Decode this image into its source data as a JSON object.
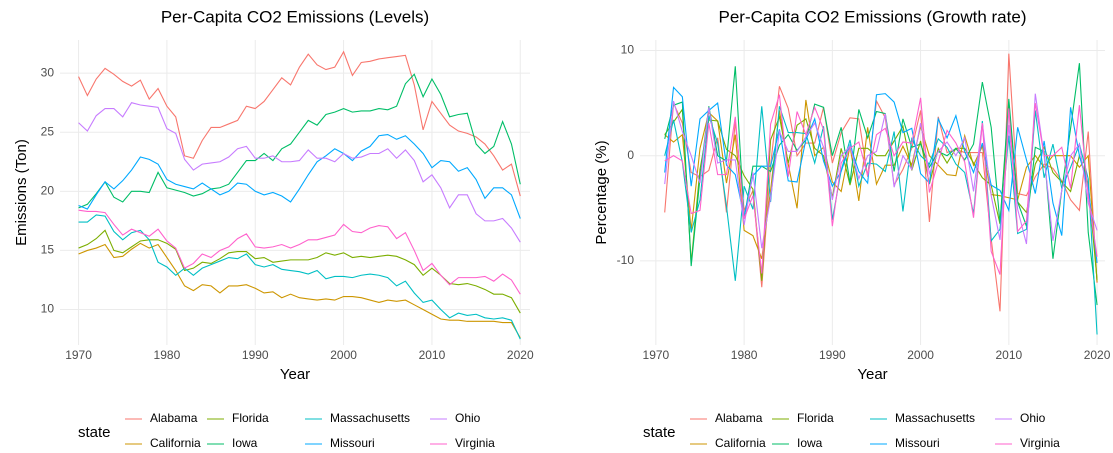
{
  "chart_data": [
    {
      "type": "line",
      "title": "Per-Capita CO2 Emissions (Levels)",
      "x_label": "Year",
      "y_label": "Emissions (Ton)",
      "x": [
        1970,
        1971,
        1972,
        1973,
        1974,
        1975,
        1976,
        1977,
        1978,
        1979,
        1980,
        1981,
        1982,
        1983,
        1984,
        1985,
        1986,
        1987,
        1988,
        1989,
        1990,
        1991,
        1992,
        1993,
        1994,
        1995,
        1996,
        1997,
        1998,
        1999,
        2000,
        2001,
        2002,
        2003,
        2004,
        2005,
        2006,
        2007,
        2008,
        2009,
        2010,
        2011,
        2012,
        2013,
        2014,
        2015,
        2016,
        2017,
        2018,
        2019,
        2020
      ],
      "xlim": [
        1967.9,
        2021.1
      ],
      "ylim": [
        7.0,
        32.8
      ],
      "xticks": [
        1970,
        1980,
        1990,
        2000,
        2010,
        2020
      ],
      "yticks": [
        10,
        15,
        20,
        25,
        30
      ],
      "grid": true,
      "legend_title": "state",
      "legend_position": "bottom",
      "series": [
        {
          "name": "Alabama",
          "color": "#F8766D",
          "values": [
            29.7,
            28.1,
            29.5,
            30.4,
            29.9,
            29.3,
            28.9,
            29.4,
            27.8,
            28.7,
            27.2,
            26.3,
            23.0,
            22.8,
            24.3,
            25.4,
            25.4,
            25.7,
            26.0,
            27.2,
            27.0,
            27.6,
            28.6,
            29.6,
            29.0,
            30.5,
            31.6,
            30.7,
            30.3,
            30.5,
            31.8,
            29.8,
            30.9,
            31.0,
            31.2,
            31.3,
            31.4,
            31.5,
            29.0,
            25.2,
            27.6,
            26.6,
            25.6,
            25.1,
            24.9,
            24.6,
            24.0,
            23.0,
            21.8,
            22.3,
            19.6
          ]
        },
        {
          "name": "California",
          "color": "#CD9600",
          "values": [
            14.7,
            15.0,
            15.2,
            15.5,
            14.4,
            14.5,
            15.1,
            15.6,
            15.2,
            15.5,
            14.4,
            13.3,
            12.0,
            11.6,
            12.1,
            12.0,
            11.4,
            12.0,
            12.0,
            12.1,
            11.8,
            11.4,
            11.5,
            11.0,
            11.3,
            11.0,
            10.9,
            10.8,
            10.9,
            10.8,
            11.1,
            11.1,
            11.0,
            10.8,
            10.6,
            10.8,
            10.7,
            10.8,
            10.4,
            10.0,
            9.6,
            9.2,
            9.1,
            9.1,
            9.0,
            9.0,
            9.0,
            9.0,
            8.9,
            8.9,
            7.6
          ]
        },
        {
          "name": "Florida",
          "color": "#7CAE00",
          "values": [
            15.2,
            15.5,
            16.0,
            16.7,
            15.0,
            14.8,
            15.3,
            15.8,
            15.9,
            15.9,
            15.6,
            15.1,
            13.3,
            13.5,
            14.0,
            13.9,
            14.3,
            14.8,
            14.9,
            14.9,
            14.3,
            14.4,
            14.0,
            14.1,
            14.2,
            14.2,
            14.2,
            14.4,
            14.8,
            14.6,
            14.8,
            14.4,
            14.5,
            14.4,
            14.5,
            14.6,
            14.5,
            14.2,
            13.8,
            12.9,
            13.5,
            12.9,
            12.2,
            12.1,
            12.2,
            12.0,
            11.7,
            11.3,
            11.3,
            11.0,
            9.7
          ]
        },
        {
          "name": "Iowa",
          "color": "#00BE67",
          "values": [
            18.6,
            18.9,
            19.8,
            20.8,
            19.5,
            19.1,
            20.0,
            20.0,
            19.9,
            21.6,
            20.3,
            20.1,
            19.9,
            19.6,
            19.8,
            20.2,
            20.3,
            20.6,
            21.6,
            22.6,
            22.6,
            23.2,
            22.6,
            23.6,
            24.0,
            25.0,
            26.0,
            25.6,
            26.5,
            26.7,
            27.0,
            26.7,
            26.8,
            26.8,
            27.0,
            26.9,
            27.2,
            29.1,
            29.9,
            28.0,
            29.5,
            28.2,
            26.3,
            26.5,
            26.6,
            24.0,
            23.2,
            23.8,
            25.9,
            24.0,
            20.6
          ]
        },
        {
          "name": "Massachusetts",
          "color": "#00BFC4",
          "values": [
            17.4,
            17.4,
            18.0,
            17.9,
            16.6,
            15.9,
            16.5,
            16.7,
            15.9,
            14.0,
            13.6,
            12.9,
            13.5,
            12.9,
            13.5,
            13.8,
            14.1,
            14.4,
            14.3,
            14.7,
            13.8,
            13.6,
            13.8,
            13.4,
            13.3,
            13.2,
            13.0,
            13.3,
            12.6,
            12.8,
            12.8,
            12.7,
            12.9,
            13.0,
            12.9,
            12.7,
            12.0,
            12.4,
            11.4,
            10.6,
            10.8,
            10.0,
            9.3,
            9.7,
            9.5,
            9.6,
            9.3,
            9.2,
            9.3,
            9.1,
            7.5
          ]
        },
        {
          "name": "Missouri",
          "color": "#00A9FF",
          "values": [
            18.8,
            18.5,
            19.7,
            20.8,
            20.2,
            20.9,
            21.8,
            22.9,
            22.7,
            22.3,
            21.0,
            20.6,
            20.4,
            20.2,
            20.7,
            20.2,
            19.7,
            20.0,
            20.7,
            20.6,
            20.0,
            19.7,
            19.9,
            19.6,
            19.1,
            20.2,
            21.4,
            22.5,
            23.0,
            23.6,
            23.2,
            22.6,
            23.4,
            23.8,
            24.7,
            24.8,
            24.4,
            24.7,
            24.0,
            23.2,
            22.0,
            22.6,
            22.5,
            21.7,
            22.0,
            21.0,
            19.4,
            20.3,
            20.3,
            19.7,
            17.7
          ]
        },
        {
          "name": "Ohio",
          "color": "#C77CFF",
          "values": [
            25.8,
            25.1,
            26.4,
            27.0,
            27.0,
            26.3,
            27.5,
            27.3,
            27.2,
            27.1,
            25.3,
            24.9,
            22.7,
            21.8,
            22.3,
            22.4,
            22.5,
            22.9,
            23.6,
            23.8,
            22.8,
            22.8,
            23.0,
            22.5,
            22.5,
            22.6,
            23.5,
            22.8,
            22.8,
            22.5,
            23.2,
            22.8,
            22.9,
            23.2,
            23.2,
            23.6,
            22.8,
            23.5,
            22.6,
            20.8,
            21.4,
            20.3,
            18.6,
            19.7,
            19.7,
            18.1,
            17.5,
            17.5,
            17.7,
            16.9,
            15.7
          ]
        },
        {
          "name": "Virginia",
          "color": "#FF61CC",
          "values": [
            18.4,
            18.3,
            18.3,
            18.2,
            17.2,
            16.3,
            16.8,
            16.5,
            16.2,
            16.8,
            15.8,
            15.2,
            13.5,
            13.9,
            14.7,
            14.4,
            15.0,
            15.3,
            16.0,
            16.4,
            15.3,
            15.2,
            15.3,
            15.5,
            15.2,
            15.5,
            15.9,
            15.9,
            16.1,
            16.3,
            17.2,
            16.6,
            16.5,
            16.9,
            17.1,
            17.0,
            16.0,
            16.5,
            15.0,
            13.3,
            13.9,
            12.9,
            12.1,
            12.7,
            12.7,
            12.7,
            12.8,
            12.4,
            13.0,
            12.5,
            11.3
          ]
        }
      ]
    },
    {
      "type": "line",
      "title": "Per-Capita CO2 Emissions (Growth rate)",
      "x_label": "Year",
      "y_label": "Percentage (%)",
      "x": [
        1971,
        1972,
        1973,
        1974,
        1975,
        1976,
        1977,
        1978,
        1979,
        1980,
        1981,
        1982,
        1983,
        1984,
        1985,
        1986,
        1987,
        1988,
        1989,
        1990,
        1991,
        1992,
        1993,
        1994,
        1995,
        1996,
        1997,
        1998,
        1999,
        2000,
        2001,
        2002,
        2003,
        2004,
        2005,
        2006,
        2007,
        2008,
        2009,
        2010,
        2011,
        2012,
        2013,
        2014,
        2015,
        2016,
        2017,
        2018,
        2019,
        2020
      ],
      "xlim": [
        1968.2,
        2020.9
      ],
      "ylim": [
        -18.0,
        11.0
      ],
      "xticks": [
        1970,
        1980,
        1990,
        2000,
        2010,
        2020
      ],
      "yticks": [
        -10,
        0,
        10
      ],
      "grid": true,
      "legend_title": "state",
      "legend_position": "bottom",
      "series": [
        {
          "name": "Alabama",
          "color": "#F8766D",
          "values": [
            -5.4,
            5.0,
            3.1,
            -1.6,
            -2.0,
            -1.4,
            1.7,
            -5.4,
            3.2,
            -5.2,
            -3.3,
            -12.5,
            -0.9,
            6.6,
            4.5,
            0,
            1.2,
            1.2,
            4.6,
            -0.7,
            2.2,
            3.6,
            3.5,
            -2.0,
            5.2,
            3.6,
            -2.8,
            -1.3,
            0.7,
            4.3,
            -6.3,
            3.7,
            0.3,
            0.6,
            0.3,
            0.3,
            0.3,
            -7.9,
            -14.8,
            9.7,
            -3.6,
            -3.8,
            -2.0,
            -0.8,
            -1.2,
            -2.4,
            -4.2,
            -5.2,
            2.3,
            -12.1
          ]
        },
        {
          "name": "California",
          "color": "#CD9600",
          "values": [
            2.0,
            1.3,
            2.0,
            -7.1,
            0.7,
            4.1,
            3.3,
            -2.6,
            2.0,
            -7.1,
            -7.6,
            -9.8,
            -3.3,
            4.3,
            -0.8,
            -5.0,
            5.3,
            0,
            0.8,
            -2.5,
            -3.4,
            0.9,
            -4.3,
            2.7,
            -2.7,
            -0.9,
            -0.9,
            0.9,
            -0.9,
            2.8,
            0,
            -0.9,
            -1.8,
            -1.9,
            1.9,
            -0.9,
            0.9,
            -3.7,
            -3.8,
            -4.0,
            -4.2,
            -1.1,
            0,
            -1.1,
            0,
            0,
            0,
            -1.1,
            0,
            -12.0
          ]
        },
        {
          "name": "Florida",
          "color": "#7CAE00",
          "values": [
            2.0,
            3.2,
            4.4,
            -10.2,
            -1.3,
            3.4,
            3.3,
            0.6,
            0,
            -1.9,
            -3.2,
            -11.9,
            1.5,
            3.7,
            -0.7,
            2.9,
            3.5,
            0.7,
            0,
            -4.0,
            0.7,
            -2.8,
            0.7,
            0.7,
            0,
            0,
            1.4,
            2.8,
            -1.4,
            1.4,
            -2.7,
            0.7,
            -0.7,
            0.7,
            0.7,
            -0.7,
            -2.1,
            -2.8,
            -6.5,
            4.7,
            -4.4,
            -5.4,
            -0.8,
            0.8,
            -1.6,
            -2.5,
            -3.4,
            0,
            -2.7,
            -11.8
          ]
        },
        {
          "name": "Iowa",
          "color": "#00BE67",
          "values": [
            1.6,
            4.8,
            5.1,
            -10.5,
            -2.1,
            4.7,
            0,
            -0.5,
            8.5,
            -6.0,
            -1.0,
            -1.0,
            -1.5,
            1.0,
            2.0,
            0.5,
            1.5,
            4.9,
            4.6,
            0,
            2.7,
            -2.6,
            4.4,
            1.7,
            4.2,
            4.0,
            -1.5,
            3.5,
            0.8,
            1.1,
            -1.1,
            0.4,
            0,
            0.7,
            -0.4,
            1.1,
            7.0,
            2.7,
            -6.4,
            5.4,
            -4.4,
            -6.7,
            0.8,
            0.4,
            -9.8,
            -3.3,
            2.6,
            8.8,
            -7.3,
            -14.2
          ]
        },
        {
          "name": "Massachusetts",
          "color": "#00BFC4",
          "values": [
            0,
            3.4,
            -0.6,
            -7.3,
            -4.2,
            3.8,
            1.2,
            -4.8,
            -11.9,
            -2.9,
            -5.1,
            4.7,
            -4.4,
            4.7,
            2.2,
            2.2,
            2.1,
            -0.7,
            2.8,
            -6.1,
            -1.4,
            1.5,
            -2.9,
            -0.7,
            -0.8,
            -1.5,
            2.3,
            -5.3,
            1.6,
            0,
            -0.8,
            1.6,
            0.8,
            -0.8,
            -1.6,
            -5.5,
            3.3,
            -8.1,
            -7.0,
            1.9,
            -7.4,
            -7.0,
            4.3,
            -2.1,
            1.1,
            -3.1,
            -1.1,
            1.1,
            -2.2,
            -17.0
          ]
        },
        {
          "name": "Missouri",
          "color": "#00A9FF",
          "values": [
            -1.6,
            6.5,
            5.6,
            -2.9,
            3.5,
            4.3,
            5.0,
            -0.9,
            -1.8,
            -5.8,
            -1.9,
            -1.0,
            -1.0,
            2.5,
            -2.4,
            -2.5,
            1.5,
            3.5,
            -0.5,
            -2.9,
            -1.5,
            1.0,
            -1.5,
            -2.6,
            5.8,
            5.9,
            5.1,
            2.2,
            2.6,
            -1.7,
            -2.6,
            3.5,
            1.7,
            3.8,
            0.4,
            -1.6,
            1.2,
            -2.8,
            -3.3,
            -5.2,
            2.7,
            -0.4,
            -3.6,
            1.4,
            -4.5,
            -7.6,
            4.6,
            0,
            -3.0,
            -10.2
          ]
        },
        {
          "name": "Ohio",
          "color": "#C77CFF",
          "values": [
            -2.7,
            5.2,
            2.3,
            0,
            -2.6,
            4.6,
            -0.7,
            -0.4,
            -0.4,
            -6.6,
            -1.6,
            -8.8,
            -4.0,
            2.3,
            0.4,
            0.4,
            1.8,
            3.1,
            0.8,
            -4.2,
            0,
            0.9,
            -2.2,
            0,
            0.4,
            4.0,
            -3.0,
            0,
            -1.3,
            3.1,
            -1.7,
            0.4,
            1.3,
            0,
            1.7,
            -3.4,
            3.1,
            -3.8,
            -8.0,
            2.9,
            -5.1,
            -8.4,
            5.9,
            0,
            -8.1,
            -3.3,
            0,
            1.1,
            -4.5,
            -7.1
          ]
        },
        {
          "name": "Virginia",
          "color": "#FF61CC",
          "values": [
            -0.5,
            0,
            -0.5,
            -5.5,
            -5.2,
            3.1,
            -1.8,
            -1.8,
            3.7,
            -6.0,
            -3.8,
            -11.2,
            3.0,
            5.8,
            -2.0,
            4.2,
            2.0,
            4.6,
            2.5,
            -6.7,
            -0.7,
            0.7,
            1.3,
            -1.9,
            2.0,
            2.6,
            0,
            1.3,
            1.2,
            5.5,
            -3.5,
            -0.6,
            2.4,
            1.2,
            -0.6,
            -5.9,
            3.1,
            -9.1,
            -11.3,
            4.5,
            -7.2,
            -6.2,
            5.0,
            0,
            0,
            0.8,
            -3.1,
            4.8,
            -3.8,
            -9.6
          ]
        }
      ]
    }
  ]
}
